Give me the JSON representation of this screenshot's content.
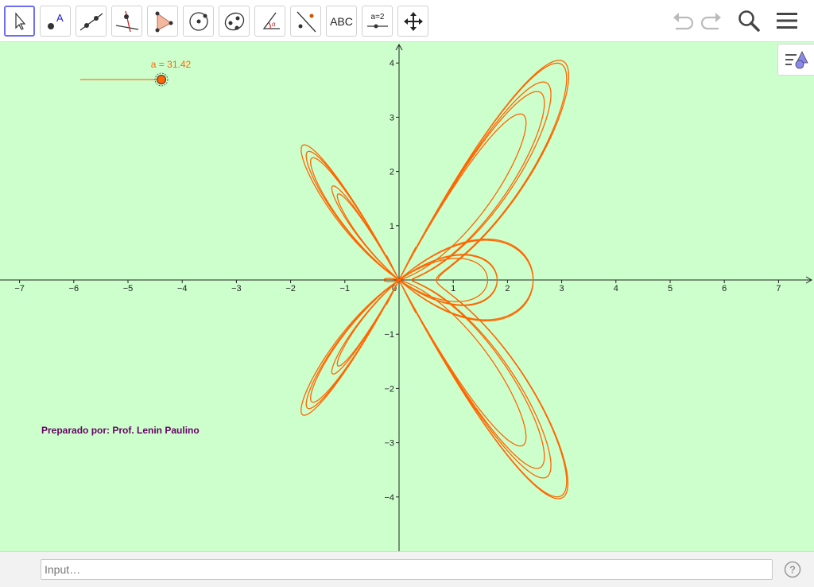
{
  "toolbar": {
    "tools": [
      {
        "name": "move-tool",
        "icon": "pointer-arrow-icon",
        "active": true
      },
      {
        "name": "point-tool",
        "icon": "point-icon"
      },
      {
        "name": "line-tool",
        "icon": "line-through-points-icon"
      },
      {
        "name": "perpendicular-line-tool",
        "icon": "perpendicular-line-icon"
      },
      {
        "name": "polygon-tool",
        "icon": "polygon-icon"
      },
      {
        "name": "circle-tool",
        "icon": "circle-center-point-icon"
      },
      {
        "name": "ellipse-tool",
        "icon": "ellipse-icon"
      },
      {
        "name": "angle-tool",
        "icon": "angle-icon"
      },
      {
        "name": "reflect-tool",
        "icon": "reflect-about-line-icon"
      },
      {
        "name": "text-tool",
        "icon": "text-icon",
        "label": "ABC"
      },
      {
        "name": "slider-tool",
        "icon": "slider-icon",
        "label": "a=2"
      },
      {
        "name": "move-graphics-view-tool",
        "icon": "move-arrows-icon"
      }
    ],
    "right": {
      "undo": "undo-icon",
      "redo": "redo-icon",
      "search": "search-icon",
      "menu": "menu-icon"
    }
  },
  "graphics": {
    "background": "#ccffcc",
    "curve_color": "#ff6600",
    "slider": {
      "label": "a = 31.42",
      "min": 0,
      "max": 31.42,
      "value": 31.42
    },
    "credit": "Preparado por: Prof. Lenin Paulino"
  },
  "chart_data": {
    "type": "line",
    "title": "",
    "description": "Parametric butterfly-like curve: x = cos(t)·(e^cos(t) − 2cos(4t) − sin^5(t/12)), y = sin(2t)·(...) family, traced for t in [0, a]",
    "x_axis": {
      "min": -7.3,
      "max": 7.6,
      "ticks": [
        -7,
        -6,
        -5,
        -4,
        -3,
        -2,
        -1,
        0,
        1,
        2,
        3,
        4,
        5,
        6,
        7
      ],
      "tick_labels": [
        "−7",
        "−6",
        "−5",
        "−4",
        "−3",
        "−2",
        "−1",
        "0",
        "1",
        "2",
        "3",
        "4",
        "5",
        "6",
        "7"
      ]
    },
    "y_axis": {
      "min": -4.9,
      "max": 4.5,
      "ticks": [
        -4,
        -3,
        -2,
        -1,
        1,
        2,
        3,
        4
      ],
      "tick_labels": [
        "−4",
        "−3",
        "−2",
        "−1",
        "1",
        "2",
        "3",
        "4"
      ]
    },
    "series": [
      {
        "name": "curve",
        "parameter_end": 31.42
      }
    ]
  },
  "inputbar": {
    "placeholder": "Input…",
    "help_icon": "help-icon"
  }
}
